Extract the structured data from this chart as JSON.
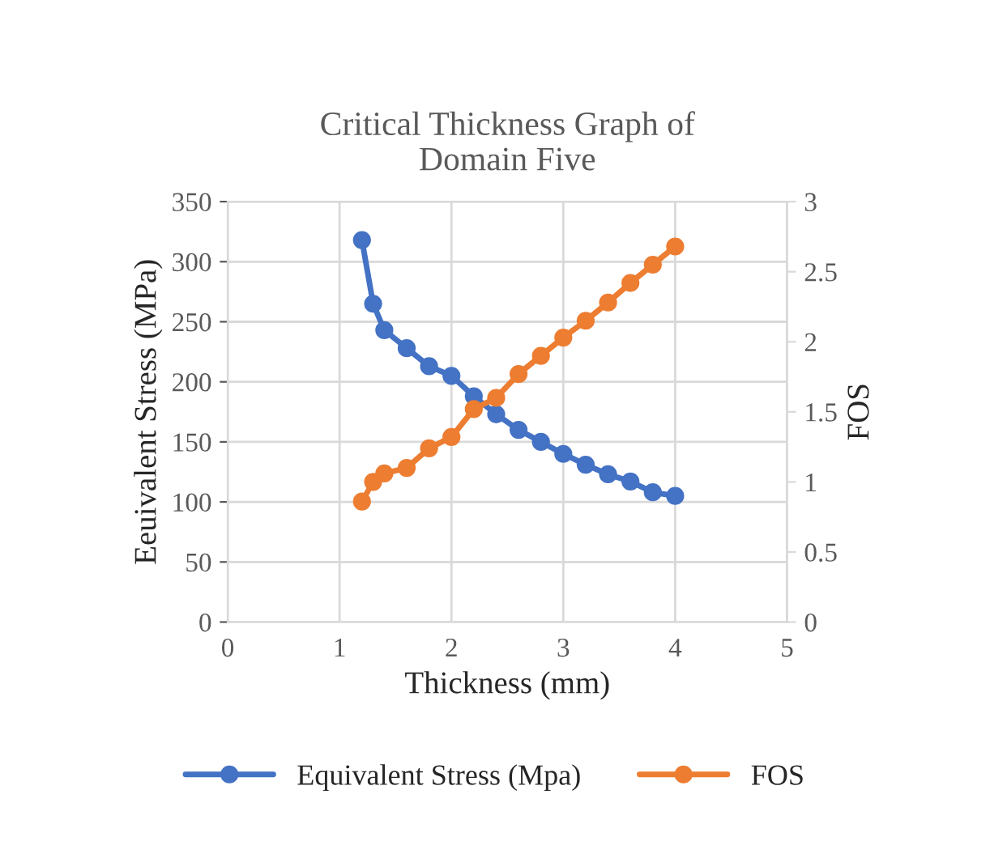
{
  "chart_data": {
    "type": "line",
    "title": "Critical Thickness Graph of\nDomain Five",
    "xlabel": "Thickness (mm)",
    "ylabel": "Eeuivalent Stress (MPa)",
    "y2label": "FOS",
    "xlim": [
      0,
      5
    ],
    "xticks": [
      0,
      1,
      2,
      3,
      4,
      5
    ],
    "ylim": [
      0,
      350
    ],
    "yticks": [
      0,
      50,
      100,
      150,
      200,
      250,
      300,
      350
    ],
    "y2lim": [
      0,
      3
    ],
    "y2ticks": [
      0,
      0.5,
      1,
      1.5,
      2,
      2.5,
      3
    ],
    "x": [
      1.2,
      1.3,
      1.4,
      1.6,
      1.8,
      2.0,
      2.2,
      2.4,
      2.6,
      2.8,
      3.0,
      3.2,
      3.4,
      3.6,
      3.8,
      4.0
    ],
    "series": [
      {
        "name": "Equivalent Stress (Mpa)",
        "color": "#4472c4",
        "values": [
          318,
          265,
          243,
          228,
          213,
          205,
          188,
          173,
          160,
          150,
          140,
          131,
          123,
          117,
          108,
          105
        ]
      },
      {
        "name": "FOS",
        "color": "#ed7d31",
        "axis": "y2",
        "values": [
          0.86,
          1.0,
          1.06,
          1.1,
          1.24,
          1.32,
          1.52,
          1.6,
          1.77,
          1.9,
          2.03,
          2.15,
          2.28,
          2.42,
          2.55,
          2.68
        ]
      }
    ],
    "grid": true,
    "legend": "bottom",
    "marker": "circle",
    "line_style": "solid"
  }
}
